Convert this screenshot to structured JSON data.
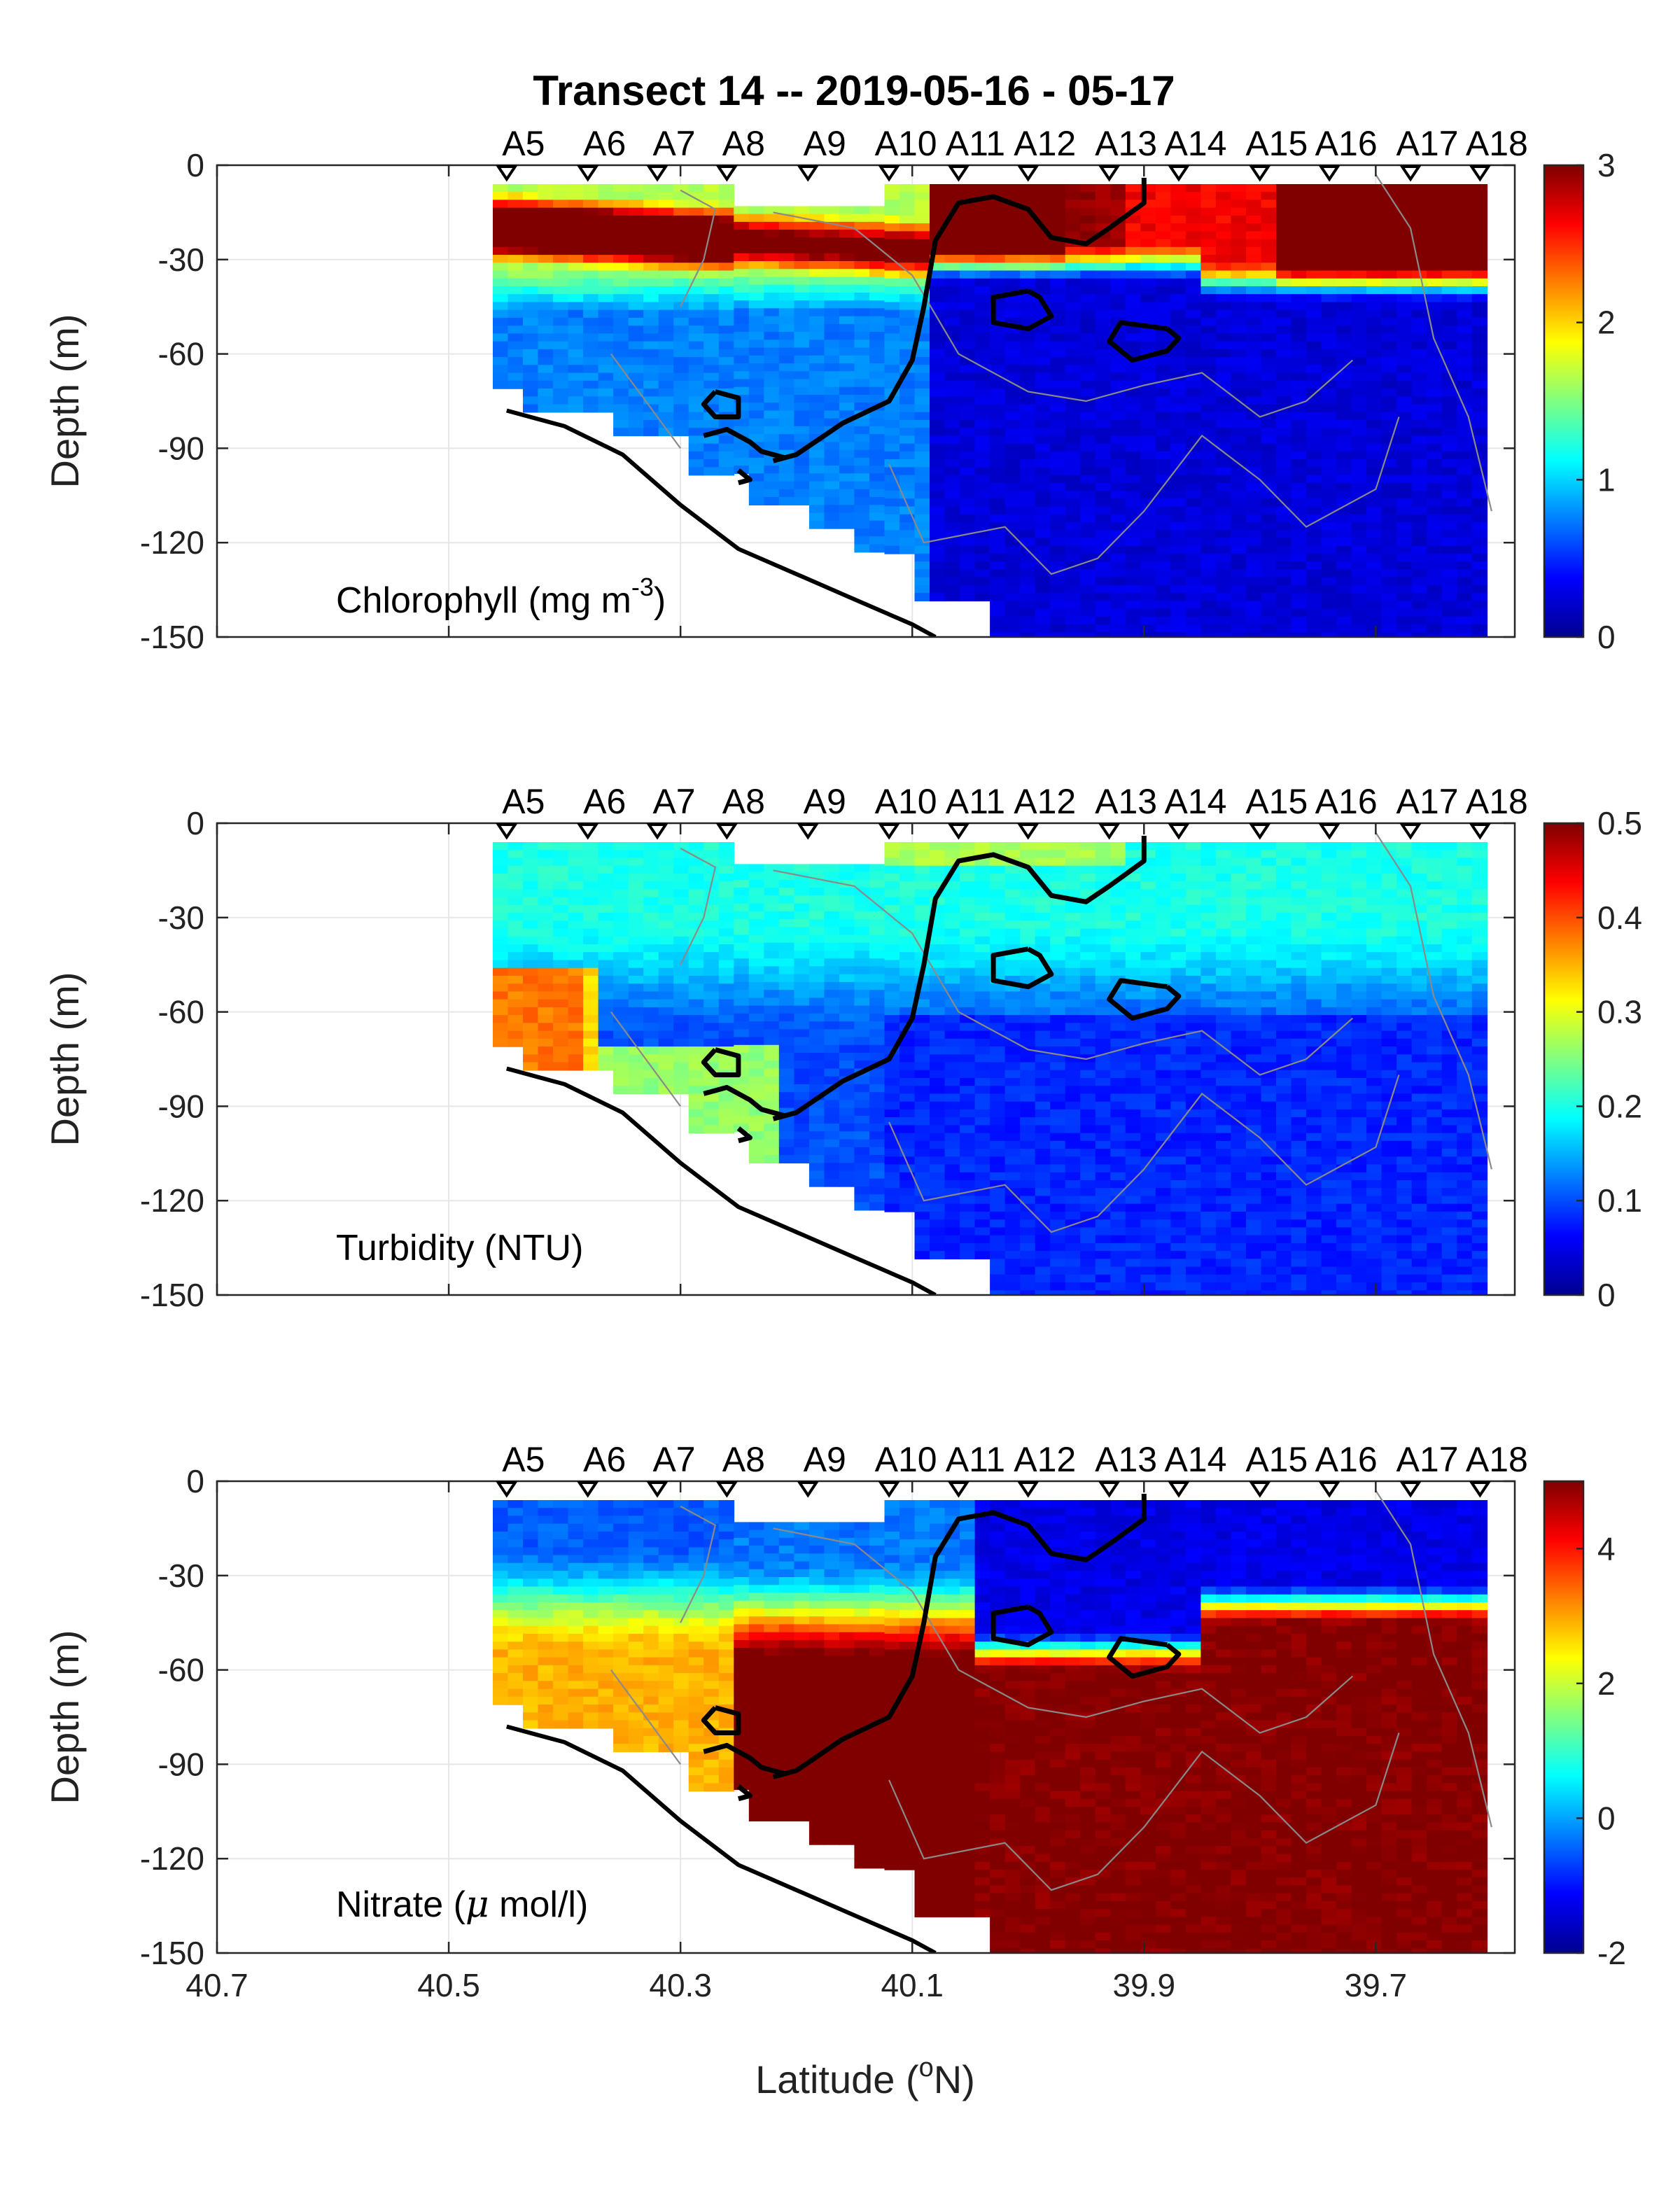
{
  "figure": {
    "title": "Transect 14 -- 2019-05-16 - 05-17",
    "xlabel_main": "Latitude (",
    "xlabel_sup": "o",
    "xlabel_end": "N)",
    "ylabel": "Depth (m)"
  },
  "chart_data": [
    {
      "type": "heatmap",
      "label_main": "Chlorophyll (mg m",
      "label_sup": "-3",
      "label_end": ")",
      "clim": [
        0,
        3
      ],
      "colorbar_ticks": [
        "3",
        "2",
        "1",
        "0"
      ],
      "colorbar_tick_values": [
        3,
        2,
        1,
        0
      ]
    },
    {
      "type": "heatmap",
      "label_main": "Turbidity (NTU)",
      "clim": [
        0,
        0.5
      ],
      "colorbar_ticks": [
        "0.5",
        "0.4",
        "0.3",
        "0.2",
        "0.1",
        "0"
      ],
      "colorbar_tick_values": [
        0.5,
        0.4,
        0.3,
        0.2,
        0.1,
        0
      ]
    },
    {
      "type": "heatmap",
      "label_main": "Nitrate (",
      "label_mu": "μ",
      "label_end": " mol/l)",
      "clim": [
        -2,
        5
      ],
      "colorbar_ticks": [
        "4",
        "2",
        "0",
        "-2"
      ],
      "colorbar_tick_values": [
        4,
        2,
        0,
        -2
      ]
    }
  ],
  "axes": {
    "xlim": [
      40.7,
      39.58
    ],
    "ylim": [
      -150,
      0
    ],
    "x_ticks": [
      "40.7",
      "40.5",
      "40.3",
      "40.1",
      "39.9",
      "39.7"
    ],
    "x_tick_values": [
      40.7,
      40.5,
      40.3,
      40.1,
      39.9,
      39.7
    ],
    "y_ticks": [
      "0",
      "-30",
      "-60",
      "-90",
      "-120",
      "-150"
    ],
    "y_tick_values": [
      0,
      -30,
      -60,
      -90,
      -120,
      -150
    ],
    "grid": true,
    "colormap": "jet",
    "colormap_hex": [
      "#00008f",
      "#0000ff",
      "#00ffff",
      "#ffff00",
      "#ff0000",
      "#800000"
    ]
  },
  "stations": [
    "A5",
    "A6",
    "A7",
    "A8",
    "A9",
    "A10",
    "A11",
    "A12",
    "A13",
    "A14",
    "A15",
    "A16",
    "A17",
    "A18"
  ],
  "station_lat": [
    40.45,
    40.38,
    40.32,
    40.26,
    40.19,
    40.12,
    40.06,
    40.0,
    39.93,
    39.87,
    39.8,
    39.74,
    39.67,
    39.61
  ],
  "bottom_depth_lat": [
    40.45,
    40.4,
    40.35,
    40.3,
    40.25,
    40.2,
    40.15,
    40.1,
    40.08
  ],
  "bottom_depth_m": [
    -78,
    -83,
    -92,
    -108,
    -122,
    -130,
    -138,
    -146,
    -150
  ]
}
